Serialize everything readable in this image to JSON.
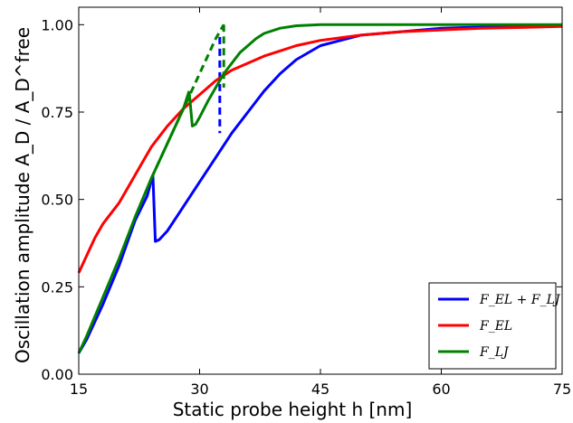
{
  "chart_data": {
    "type": "line",
    "xlabel": "Static probe height h [nm]",
    "ylabel": "Oscillation amplitude A_D / A_D^free",
    "xlim": [
      15,
      75
    ],
    "ylim": [
      0.0,
      1.05
    ],
    "xticks": [
      15,
      30,
      45,
      60,
      75
    ],
    "xtick_labels": [
      "15",
      "30",
      "45",
      "60",
      "75"
    ],
    "yticks": [
      0.0,
      0.25,
      0.5,
      0.75,
      1.0
    ],
    "ytick_labels": [
      "0.00",
      "0.25",
      "0.50",
      "0.75",
      "1.00"
    ],
    "grid": false,
    "legend_position": "bottom-right",
    "series": [
      {
        "name": "F_EL + F_LJ",
        "color": "#0000ff",
        "segments": [
          {
            "style": "solid",
            "x": [
              15,
              16,
              18,
              20,
              22,
              23.5,
              24.2
            ],
            "y": [
              0.06,
              0.1,
              0.2,
              0.31,
              0.44,
              0.51,
              0.57
            ]
          },
          {
            "style": "solid",
            "x": [
              24.2,
              24.5,
              25,
              26,
              28,
              30,
              32,
              34,
              36,
              38,
              40,
              42,
              45,
              50,
              55,
              60,
              65,
              70,
              75
            ],
            "y": [
              0.57,
              0.38,
              0.385,
              0.41,
              0.48,
              0.55,
              0.62,
              0.69,
              0.75,
              0.81,
              0.86,
              0.9,
              0.94,
              0.97,
              0.98,
              0.99,
              0.993,
              0.995,
              0.997
            ]
          },
          {
            "style": "dashed",
            "x": [
              32.5,
              32.5
            ],
            "y": [
              0.965,
              0.69
            ]
          }
        ]
      },
      {
        "name": "F_EL",
        "color": "#ff0000",
        "segments": [
          {
            "style": "solid",
            "x": [
              15,
              16,
              17,
              18,
              19,
              20,
              21,
              22,
              23,
              24,
              25,
              26,
              28,
              30,
              32,
              34,
              36,
              38,
              40,
              42,
              45,
              50,
              55,
              60,
              65,
              70,
              75
            ],
            "y": [
              0.29,
              0.34,
              0.39,
              0.43,
              0.46,
              0.49,
              0.53,
              0.57,
              0.61,
              0.65,
              0.68,
              0.71,
              0.76,
              0.8,
              0.84,
              0.87,
              0.89,
              0.91,
              0.925,
              0.94,
              0.955,
              0.97,
              0.98,
              0.985,
              0.99,
              0.992,
              0.995
            ]
          }
        ]
      },
      {
        "name": "F_LJ",
        "color": "#008000",
        "segments": [
          {
            "style": "solid",
            "x": [
              15,
              16,
              18,
              20,
              22,
              24,
              26,
              28,
              28.7
            ],
            "y": [
              0.06,
              0.11,
              0.22,
              0.33,
              0.45,
              0.56,
              0.66,
              0.76,
              0.81
            ]
          },
          {
            "style": "solid",
            "x": [
              28.7,
              29.1,
              29.5,
              30,
              31,
              32,
              33,
              34,
              35,
              36,
              37,
              38,
              40,
              42,
              45,
              50,
              55,
              60,
              65,
              70,
              75
            ],
            "y": [
              0.81,
              0.71,
              0.715,
              0.735,
              0.78,
              0.82,
              0.86,
              0.89,
              0.92,
              0.94,
              0.96,
              0.975,
              0.99,
              0.997,
              1.0,
              1.0,
              1.0,
              1.0,
              1.0,
              1.0,
              1.0
            ]
          },
          {
            "style": "dashed",
            "x": [
              24,
              26,
              28,
              29,
              30,
              31,
              32,
              33
            ],
            "y": [
              0.56,
              0.66,
              0.76,
              0.81,
              0.86,
              0.91,
              0.96,
              1.0
            ]
          },
          {
            "style": "dashed",
            "x": [
              33,
              33
            ],
            "y": [
              1.0,
              0.82
            ]
          }
        ]
      }
    ]
  },
  "legend": {
    "items": [
      {
        "label": "F_EL + F_LJ",
        "color": "#0000ff"
      },
      {
        "label": "F_EL",
        "color": "#ff0000"
      },
      {
        "label": "F_LJ",
        "color": "#008000"
      }
    ]
  }
}
